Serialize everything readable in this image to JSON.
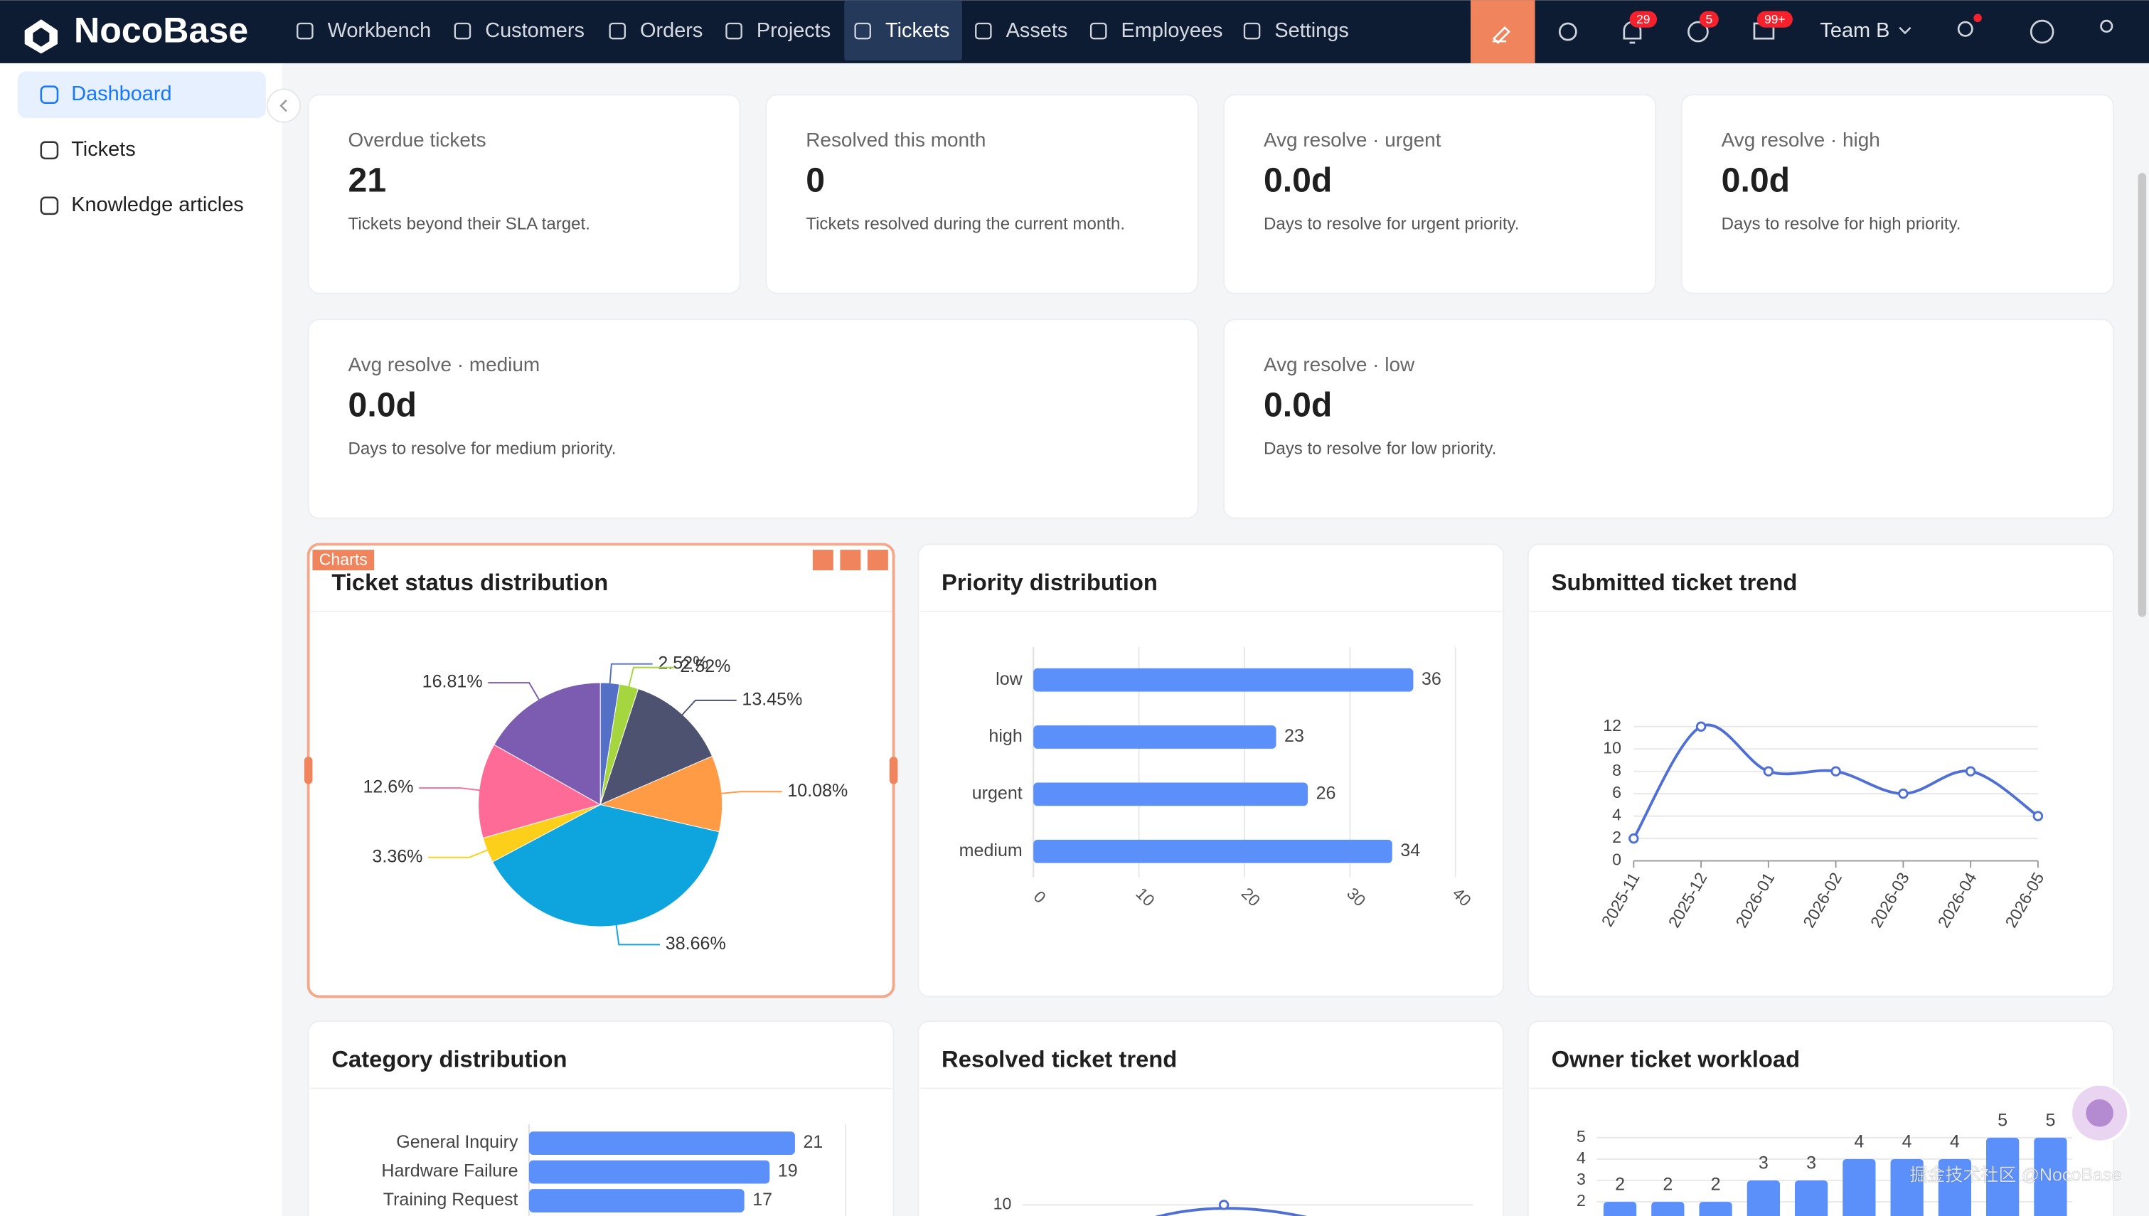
{
  "header": {
    "brand": "NocoBase",
    "nav": [
      "Workbench",
      "Customers",
      "Orders",
      "Projects",
      "Tickets",
      "Assets",
      "Employees",
      "Settings"
    ],
    "active_nav": 4,
    "badges": [
      "29",
      "5",
      "99+"
    ],
    "user": "Team B"
  },
  "sidebar": {
    "items": [
      "Dashboard",
      "Tickets",
      "Knowledge articles"
    ],
    "active_item": 0
  },
  "stat_cards": [
    {
      "label": "Overdue tickets",
      "value": 21,
      "description": "Tickets beyond their SLA target."
    },
    {
      "label": "Resolved this month",
      "value": 0,
      "description": "Tickets resolved during the current month."
    },
    {
      "label": "Avg resolve · urgent",
      "value": "0.0d",
      "description": "Days to resolve for urgent priority."
    },
    {
      "label": "Avg resolve · high",
      "value": "0.0d",
      "description": "Days to resolve for high priority."
    },
    {
      "label": "Avg resolve · medium",
      "value": "0.0d",
      "description": "Days to resolve for medium priority."
    },
    {
      "label": "Avg resolve · low",
      "value": "0.0d",
      "description": "Days to resolve for low priority."
    }
  ],
  "editor_tag": "Charts",
  "chart_data": [
    {
      "type": "pie",
      "title": "Ticket status distribution",
      "values": [
        2.52,
        2.52,
        13.45,
        10.08,
        38.66,
        3.36,
        12.6,
        16.81
      ],
      "value_labels": [
        "2.52%",
        "2.52%",
        "13.45%",
        "10.08%",
        "38.66%",
        "3.36%",
        "12.6%",
        "16.81%"
      ],
      "colors": [
        "#5470c6",
        "#a5d63f",
        "#4d5270",
        "#ff9a45",
        "#0ea5de",
        "#fcd01a",
        "#ff6b97",
        "#7b5cb0"
      ]
    },
    {
      "type": "hbar",
      "title": "Priority distribution",
      "categories": [
        "low",
        "high",
        "urgent",
        "medium"
      ],
      "values": [
        36,
        23,
        26,
        34
      ],
      "color": "#5b8ff9",
      "xlim": [
        0,
        40
      ],
      "xticks": [
        0,
        10,
        20,
        30,
        40
      ]
    },
    {
      "type": "line",
      "title": "Submitted ticket trend",
      "x": [
        "2025-11",
        "2025-12",
        "2026-01",
        "2026-02",
        "2026-03",
        "2026-04",
        "2026-05"
      ],
      "values": [
        2,
        12,
        8,
        8,
        6,
        8,
        4
      ],
      "color": "#4f6fd6",
      "ylim": [
        0,
        12
      ],
      "yticks": [
        0,
        2,
        4,
        6,
        8,
        10,
        12
      ]
    },
    {
      "type": "hbar",
      "title": "Category distribution",
      "categories": [
        "General Inquiry",
        "Hardware Failure",
        "Training Request"
      ],
      "values": [
        21,
        19,
        17
      ],
      "color": "#5b8ff9",
      "xlim": [
        0,
        25
      ]
    },
    {
      "type": "partial-line",
      "title": "Resolved ticket trend",
      "values": [
        10
      ],
      "yticks": [
        10
      ],
      "color": "#4f6fd6"
    },
    {
      "type": "bar",
      "title": "Owner ticket workload",
      "values": [
        2,
        2,
        2,
        3,
        3,
        4,
        4,
        4,
        5,
        5
      ],
      "color": "#5b8ff9",
      "ylim": [
        0,
        5
      ],
      "yticks": [
        2,
        3,
        4,
        5
      ]
    }
  ],
  "watermark": "掘金技术社区 @NocoBase"
}
